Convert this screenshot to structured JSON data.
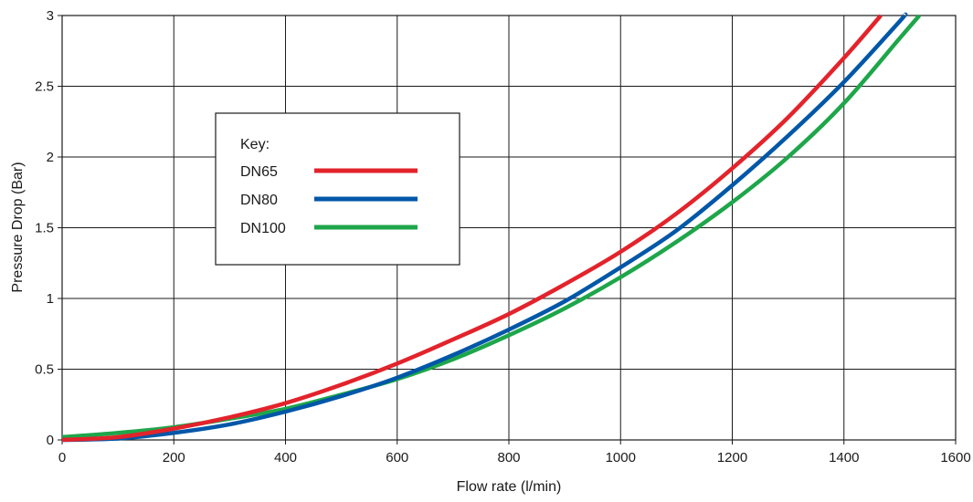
{
  "chart_data": {
    "type": "line",
    "title": "",
    "xlabel": "Flow rate (l/min)",
    "ylabel": "Pressure Drop (Bar)",
    "xlim": [
      0,
      1600
    ],
    "ylim": [
      0,
      3
    ],
    "x_ticks": [
      0,
      200,
      400,
      600,
      800,
      1000,
      1200,
      1400,
      1600
    ],
    "x_tick_labels": [
      "0",
      "200",
      "400",
      "600",
      "800",
      "1000",
      "1200",
      "1400",
      "1600"
    ],
    "y_ticks": [
      0,
      0.5,
      1,
      1.5,
      2,
      2.5,
      3
    ],
    "y_tick_labels": [
      "0",
      "0.5",
      "1",
      "1.5",
      "2",
      "2.5",
      "3"
    ],
    "grid": true,
    "legend": {
      "title": "Key:",
      "placement": "upper-left"
    },
    "series": [
      {
        "name": "DN65",
        "color": "#e3232b",
        "x": [
          0,
          100,
          200,
          300,
          400,
          500,
          600,
          700,
          800,
          900,
          1000,
          1100,
          1200,
          1300,
          1400,
          1466
        ],
        "y": [
          0,
          0.02,
          0.08,
          0.16,
          0.26,
          0.39,
          0.54,
          0.71,
          0.89,
          1.1,
          1.33,
          1.6,
          1.92,
          2.28,
          2.7,
          3.0
        ]
      },
      {
        "name": "DN80",
        "color": "#0057a8",
        "x": [
          0,
          100,
          200,
          300,
          400,
          500,
          600,
          700,
          800,
          900,
          1000,
          1100,
          1200,
          1300,
          1400,
          1500,
          1508
        ],
        "y": [
          0,
          0.01,
          0.05,
          0.11,
          0.2,
          0.31,
          0.44,
          0.6,
          0.78,
          0.98,
          1.22,
          1.48,
          1.8,
          2.15,
          2.53,
          2.96,
          3.0
        ]
      },
      {
        "name": "DN100",
        "color": "#1ea64a",
        "x": [
          0,
          100,
          200,
          300,
          400,
          500,
          600,
          700,
          800,
          900,
          1000,
          1100,
          1200,
          1300,
          1400,
          1500,
          1535
        ],
        "y": [
          0.02,
          0.05,
          0.09,
          0.15,
          0.22,
          0.32,
          0.43,
          0.57,
          0.74,
          0.93,
          1.15,
          1.4,
          1.68,
          2.0,
          2.38,
          2.84,
          3.0
        ]
      }
    ]
  }
}
